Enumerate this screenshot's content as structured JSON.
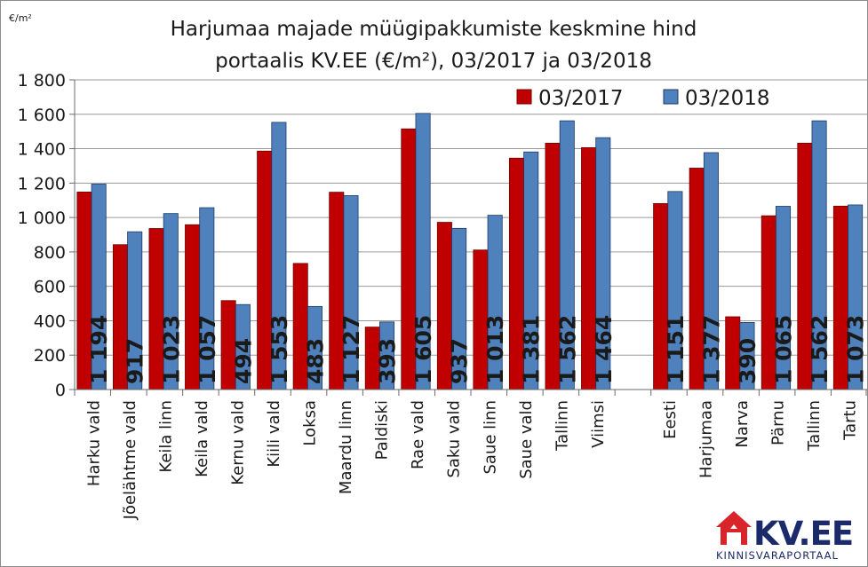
{
  "chart_data": {
    "type": "bar",
    "title_lines": [
      "Harjumaa majade müügipakkumiste keskmine hind",
      "portaalis KV.EE (€/m²), 03/2017 ja 03/2018"
    ],
    "unit_label": "€/m²",
    "ylim": [
      0,
      1800
    ],
    "yticks": [
      0,
      200,
      400,
      600,
      800,
      1000,
      1200,
      1400,
      1600,
      1800
    ],
    "ytick_labels": [
      "0",
      "200",
      "400",
      "600",
      "800",
      "1 000",
      "1 200",
      "1 400",
      "1 600",
      "1 800"
    ],
    "grid": "horizontal",
    "legend_position": "top-right",
    "categories": [
      "Harku vald",
      "Jõelähtme vald",
      "Keila linn",
      "Keila vald",
      "Kernu vald",
      "Kiili vald",
      "Loksa",
      "Maardu linn",
      "Paldiski",
      "Rae vald",
      "Saku vald",
      "Saue linn",
      "Saue vald",
      "Tallinn",
      "Viimsi",
      "",
      "Eesti",
      "Harjumaa",
      "Narva",
      "Pärnu",
      "Tallinn",
      "Tartu"
    ],
    "series": [
      {
        "name": "03/2017",
        "color": "#c00000",
        "values": [
          1148,
          842,
          936,
          958,
          517,
          1386,
          733,
          1147,
          363,
          1515,
          972,
          811,
          1345,
          1432,
          1406,
          null,
          1081,
          1287,
          423,
          1010,
          1432,
          1066
        ]
      },
      {
        "name": "03/2018",
        "color": "#4f81bd",
        "values": [
          1194,
          917,
          1023,
          1057,
          494,
          1553,
          483,
          1127,
          393,
          1605,
          937,
          1013,
          1381,
          1562,
          1464,
          null,
          1151,
          1377,
          390,
          1065,
          1562,
          1073
        ]
      }
    ],
    "data_labels": [
      "1 194",
      "917",
      "1 023",
      "1 057",
      "494",
      "1 553",
      "483",
      "1 127",
      "393",
      "1 605",
      "937",
      "1 013",
      "1 381",
      "1 562",
      "1 464",
      "",
      "1 151",
      "1 377",
      "390",
      "1 065",
      "1 562",
      "1 073"
    ]
  },
  "logo": {
    "brand": "KV.EE",
    "subtitle": "KINNISVARAPORTAAL",
    "red": "#d9252a",
    "navy": "#1b2a6b"
  }
}
